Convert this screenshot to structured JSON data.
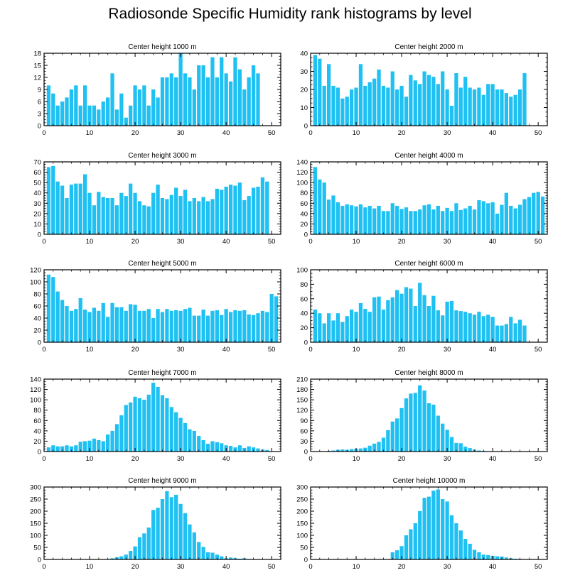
{
  "figure": {
    "title": "Radiosonde Specific Humidity rank histograms by level"
  },
  "colors": {
    "bar": "#1fc0f2",
    "axis": "#000000",
    "background": "#ffffff"
  },
  "chart_data": [
    {
      "type": "bar",
      "title": "Center height 1000 m",
      "xlim": [
        0,
        52
      ],
      "ylim": [
        0,
        18
      ],
      "xticks": [
        0,
        10,
        20,
        30,
        40,
        50
      ],
      "yticks": [
        0,
        3,
        6,
        9,
        12,
        15,
        18
      ],
      "x": [
        1,
        2,
        3,
        4,
        5,
        6,
        7,
        8,
        9,
        10,
        11,
        12,
        13,
        14,
        15,
        16,
        17,
        18,
        19,
        20,
        21,
        22,
        23,
        24,
        25,
        26,
        27,
        28,
        29,
        30,
        31,
        32,
        33,
        34,
        35,
        36,
        37,
        38,
        39,
        40,
        41,
        42,
        43,
        44,
        45,
        46,
        47,
        48,
        49,
        50,
        51
      ],
      "values": [
        10,
        8,
        5,
        6,
        7,
        9,
        10,
        5,
        10,
        5,
        5,
        4,
        6,
        7,
        13,
        4,
        8,
        2,
        5,
        10,
        9,
        10,
        5,
        9,
        7,
        12,
        12,
        13,
        12,
        18,
        13,
        12,
        9,
        15,
        15,
        12,
        17,
        12,
        17,
        13,
        11,
        17,
        14,
        9,
        12,
        15,
        13,
        0,
        0,
        0,
        0
      ]
    },
    {
      "type": "bar",
      "title": "Center height 2000 m",
      "xlim": [
        0,
        52
      ],
      "ylim": [
        0,
        40
      ],
      "xticks": [
        0,
        10,
        20,
        30,
        40,
        50
      ],
      "yticks": [
        0,
        10,
        20,
        30,
        40
      ],
      "x": [
        1,
        2,
        3,
        4,
        5,
        6,
        7,
        8,
        9,
        10,
        11,
        12,
        13,
        14,
        15,
        16,
        17,
        18,
        19,
        20,
        21,
        22,
        23,
        24,
        25,
        26,
        27,
        28,
        29,
        30,
        31,
        32,
        33,
        34,
        35,
        36,
        37,
        38,
        39,
        40,
        41,
        42,
        43,
        44,
        45,
        46,
        47,
        48,
        49,
        50,
        51
      ],
      "values": [
        39,
        37,
        22,
        34,
        22,
        21,
        15,
        16,
        20,
        21,
        34,
        22,
        24,
        26,
        31,
        22,
        21,
        30,
        20,
        22,
        16,
        28,
        25,
        23,
        30,
        28,
        27,
        23,
        30,
        20,
        11,
        29,
        21,
        27,
        21,
        20,
        21,
        17,
        23,
        23,
        20,
        20,
        18,
        16,
        17,
        20,
        29,
        0,
        0,
        0,
        0
      ]
    },
    {
      "type": "bar",
      "title": "Center height 3000 m",
      "xlim": [
        0,
        52
      ],
      "ylim": [
        0,
        70
      ],
      "xticks": [
        0,
        10,
        20,
        30,
        40,
        50
      ],
      "yticks": [
        0,
        10,
        20,
        30,
        40,
        50,
        60,
        70
      ],
      "x": [
        1,
        2,
        3,
        4,
        5,
        6,
        7,
        8,
        9,
        10,
        11,
        12,
        13,
        14,
        15,
        16,
        17,
        18,
        19,
        20,
        21,
        22,
        23,
        24,
        25,
        26,
        27,
        28,
        29,
        30,
        31,
        32,
        33,
        34,
        35,
        36,
        37,
        38,
        39,
        40,
        41,
        42,
        43,
        44,
        45,
        46,
        47,
        48,
        49,
        50,
        51
      ],
      "values": [
        65,
        66,
        51,
        47,
        35,
        48,
        49,
        49,
        58,
        40,
        28,
        41,
        36,
        35,
        35,
        28,
        40,
        37,
        49,
        40,
        32,
        28,
        27,
        40,
        48,
        35,
        34,
        38,
        45,
        37,
        43,
        32,
        35,
        32,
        36,
        32,
        34,
        44,
        43,
        46,
        48,
        47,
        50,
        33,
        37,
        45,
        46,
        55,
        51,
        0,
        0
      ]
    },
    {
      "type": "bar",
      "title": "Center height 4000 m",
      "xlim": [
        0,
        52
      ],
      "ylim": [
        0,
        140
      ],
      "xticks": [
        0,
        10,
        20,
        30,
        40,
        50
      ],
      "yticks": [
        0,
        20,
        40,
        60,
        80,
        100,
        120,
        140
      ],
      "x": [
        1,
        2,
        3,
        4,
        5,
        6,
        7,
        8,
        9,
        10,
        11,
        12,
        13,
        14,
        15,
        16,
        17,
        18,
        19,
        20,
        21,
        22,
        23,
        24,
        25,
        26,
        27,
        28,
        29,
        30,
        31,
        32,
        33,
        34,
        35,
        36,
        37,
        38,
        39,
        40,
        41,
        42,
        43,
        44,
        45,
        46,
        47,
        48,
        49,
        50,
        51
      ],
      "values": [
        130,
        106,
        100,
        67,
        75,
        62,
        55,
        58,
        56,
        54,
        58,
        52,
        55,
        50,
        55,
        45,
        45,
        60,
        55,
        49,
        52,
        45,
        45,
        48,
        56,
        58,
        48,
        55,
        45,
        51,
        45,
        60,
        47,
        50,
        55,
        48,
        66,
        64,
        60,
        62,
        40,
        57,
        80,
        55,
        50,
        57,
        68,
        72,
        80,
        82,
        73
      ]
    },
    {
      "type": "bar",
      "title": "Center height 5000 m",
      "xlim": [
        0,
        52
      ],
      "ylim": [
        0,
        120
      ],
      "xticks": [
        0,
        10,
        20,
        30,
        40,
        50
      ],
      "yticks": [
        0,
        20,
        40,
        60,
        80,
        100,
        120
      ],
      "x": [
        1,
        2,
        3,
        4,
        5,
        6,
        7,
        8,
        9,
        10,
        11,
        12,
        13,
        14,
        15,
        16,
        17,
        18,
        19,
        20,
        21,
        22,
        23,
        24,
        25,
        26,
        27,
        28,
        29,
        30,
        31,
        32,
        33,
        34,
        35,
        36,
        37,
        38,
        39,
        40,
        41,
        42,
        43,
        44,
        45,
        46,
        47,
        48,
        49,
        50,
        51
      ],
      "values": [
        112,
        108,
        84,
        70,
        60,
        52,
        55,
        73,
        54,
        50,
        57,
        52,
        65,
        42,
        65,
        58,
        58,
        52,
        63,
        62,
        52,
        52,
        55,
        40,
        55,
        50,
        55,
        52,
        53,
        52,
        55,
        57,
        44,
        44,
        54,
        44,
        52,
        53,
        45,
        55,
        50,
        53,
        52,
        53,
        46,
        45,
        48,
        52,
        50,
        80,
        76
      ]
    },
    {
      "type": "bar",
      "title": "Center height 6000 m",
      "xlim": [
        0,
        52
      ],
      "ylim": [
        0,
        100
      ],
      "xticks": [
        0,
        10,
        20,
        30,
        40,
        50
      ],
      "yticks": [
        0,
        20,
        40,
        60,
        80,
        100
      ],
      "x": [
        1,
        2,
        3,
        4,
        5,
        6,
        7,
        8,
        9,
        10,
        11,
        12,
        13,
        14,
        15,
        16,
        17,
        18,
        19,
        20,
        21,
        22,
        23,
        24,
        25,
        26,
        27,
        28,
        29,
        30,
        31,
        32,
        33,
        34,
        35,
        36,
        37,
        38,
        39,
        40,
        41,
        42,
        43,
        44,
        45,
        46,
        47,
        48,
        49,
        50,
        51
      ],
      "values": [
        45,
        40,
        26,
        40,
        30,
        40,
        28,
        36,
        45,
        42,
        54,
        46,
        42,
        62,
        63,
        45,
        58,
        62,
        72,
        67,
        76,
        74,
        50,
        82,
        65,
        50,
        64,
        44,
        37,
        56,
        57,
        44,
        43,
        42,
        40,
        38,
        42,
        36,
        38,
        35,
        23,
        23,
        25,
        35,
        26,
        31,
        23,
        0,
        0,
        0,
        0
      ]
    },
    {
      "type": "bar",
      "title": "Center height 7000 m",
      "xlim": [
        0,
        52
      ],
      "ylim": [
        0,
        140
      ],
      "xticks": [
        0,
        10,
        20,
        30,
        40,
        50
      ],
      "yticks": [
        0,
        20,
        40,
        60,
        80,
        100,
        120,
        140
      ],
      "x": [
        1,
        2,
        3,
        4,
        5,
        6,
        7,
        8,
        9,
        10,
        11,
        12,
        13,
        14,
        15,
        16,
        17,
        18,
        19,
        20,
        21,
        22,
        23,
        24,
        25,
        26,
        27,
        28,
        29,
        30,
        31,
        32,
        33,
        34,
        35,
        36,
        37,
        38,
        39,
        40,
        41,
        42,
        43,
        44,
        45,
        46,
        47,
        48,
        49,
        50,
        51
      ],
      "values": [
        8,
        12,
        10,
        10,
        12,
        10,
        12,
        19,
        20,
        21,
        25,
        22,
        20,
        33,
        40,
        53,
        70,
        90,
        95,
        106,
        103,
        100,
        110,
        133,
        125,
        109,
        103,
        86,
        76,
        65,
        55,
        43,
        40,
        30,
        22,
        15,
        20,
        18,
        16,
        12,
        11,
        8,
        12,
        7,
        10,
        8,
        6,
        4,
        3,
        0,
        0
      ]
    },
    {
      "type": "bar",
      "title": "Center height 8000 m",
      "xlim": [
        0,
        52
      ],
      "ylim": [
        0,
        210
      ],
      "xticks": [
        0,
        10,
        20,
        30,
        40,
        50
      ],
      "yticks": [
        0,
        30,
        60,
        90,
        120,
        150,
        180,
        210
      ],
      "x": [
        1,
        2,
        3,
        4,
        5,
        6,
        7,
        8,
        9,
        10,
        11,
        12,
        13,
        14,
        15,
        16,
        17,
        18,
        19,
        20,
        21,
        22,
        23,
        24,
        25,
        26,
        27,
        28,
        29,
        30,
        31,
        32,
        33,
        34,
        35,
        36,
        37,
        38,
        39,
        40,
        41,
        42,
        43,
        44,
        45,
        46,
        47,
        48,
        49,
        50,
        51
      ],
      "values": [
        0,
        1,
        0,
        2,
        3,
        5,
        6,
        5,
        7,
        8,
        9,
        11,
        17,
        23,
        28,
        40,
        62,
        87,
        96,
        126,
        154,
        168,
        170,
        192,
        177,
        140,
        136,
        104,
        81,
        63,
        42,
        25,
        24,
        14,
        10,
        6,
        3,
        2,
        0,
        1,
        0,
        0,
        0,
        0,
        0,
        0,
        0,
        0,
        0,
        0,
        0
      ]
    },
    {
      "type": "bar",
      "title": "Center height 9000 m",
      "xlim": [
        0,
        52
      ],
      "ylim": [
        0,
        300
      ],
      "xticks": [
        0,
        10,
        20,
        30,
        40,
        50
      ],
      "yticks": [
        0,
        50,
        100,
        150,
        200,
        250,
        300
      ],
      "x": [
        1,
        2,
        3,
        4,
        5,
        6,
        7,
        8,
        9,
        10,
        11,
        12,
        13,
        14,
        15,
        16,
        17,
        18,
        19,
        20,
        21,
        22,
        23,
        24,
        25,
        26,
        27,
        28,
        29,
        30,
        31,
        32,
        33,
        34,
        35,
        36,
        37,
        38,
        39,
        40,
        41,
        42,
        43,
        44,
        45,
        46,
        47,
        48,
        49,
        50,
        51
      ],
      "values": [
        0,
        0,
        0,
        0,
        0,
        0,
        0,
        0,
        0,
        0,
        0,
        0,
        0,
        0,
        5,
        9,
        13,
        20,
        35,
        54,
        92,
        108,
        132,
        205,
        214,
        250,
        283,
        258,
        268,
        230,
        192,
        145,
        112,
        72,
        52,
        30,
        28,
        20,
        13,
        5,
        8,
        5,
        3,
        5,
        2,
        0,
        0,
        0,
        0,
        0,
        0
      ]
    },
    {
      "type": "bar",
      "title": "Center height 10000 m",
      "xlim": [
        0,
        52
      ],
      "ylim": [
        0,
        300
      ],
      "xticks": [
        0,
        10,
        20,
        30,
        40,
        50
      ],
      "yticks": [
        0,
        50,
        100,
        150,
        200,
        250,
        300
      ],
      "x": [
        1,
        2,
        3,
        4,
        5,
        6,
        7,
        8,
        9,
        10,
        11,
        12,
        13,
        14,
        15,
        16,
        17,
        18,
        19,
        20,
        21,
        22,
        23,
        24,
        25,
        26,
        27,
        28,
        29,
        30,
        31,
        32,
        33,
        34,
        35,
        36,
        37,
        38,
        39,
        40,
        41,
        42,
        43,
        44,
        45,
        46,
        47,
        48,
        49,
        50,
        51
      ],
      "values": [
        0,
        0,
        0,
        0,
        0,
        0,
        0,
        0,
        0,
        0,
        0,
        0,
        0,
        0,
        0,
        0,
        0,
        30,
        38,
        55,
        100,
        125,
        150,
        200,
        255,
        260,
        285,
        290,
        250,
        240,
        183,
        150,
        120,
        85,
        65,
        40,
        30,
        20,
        18,
        15,
        13,
        12,
        8,
        5,
        3,
        2,
        1,
        0,
        0,
        0,
        0
      ]
    }
  ]
}
